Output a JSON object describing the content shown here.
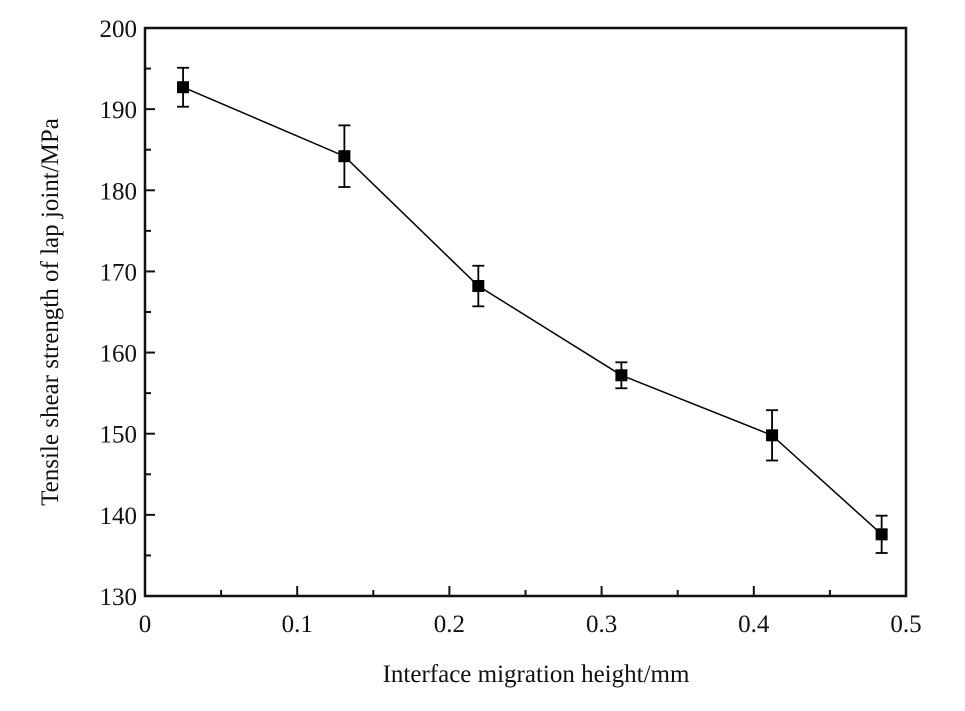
{
  "chart_data": {
    "type": "line",
    "title": "",
    "xlabel": "Interface migration height/mm",
    "ylabel": "Tensile shear strength of lap joint/MPa",
    "xlim": [
      0,
      0.5
    ],
    "ylim": [
      130,
      200
    ],
    "xticks": [
      0,
      0.1,
      0.2,
      0.3,
      0.4,
      0.5
    ],
    "xtick_labels": [
      "0",
      "0.1",
      "0.2",
      "0.3",
      "0.4",
      "0.5"
    ],
    "yticks": [
      130,
      140,
      150,
      160,
      170,
      180,
      190,
      200
    ],
    "ytick_labels": [
      "130",
      "140",
      "150",
      "160",
      "170",
      "180",
      "190",
      "200"
    ],
    "grid": false,
    "legend": "none",
    "series": [
      {
        "name": "Tensile shear strength",
        "marker": "square",
        "color": "#000000",
        "x": [
          0.025,
          0.131,
          0.219,
          0.313,
          0.412,
          0.484
        ],
        "y": [
          192.7,
          184.2,
          168.2,
          157.2,
          149.8,
          137.6
        ],
        "error": [
          2.4,
          3.8,
          2.5,
          1.6,
          3.1,
          2.3
        ]
      }
    ]
  }
}
